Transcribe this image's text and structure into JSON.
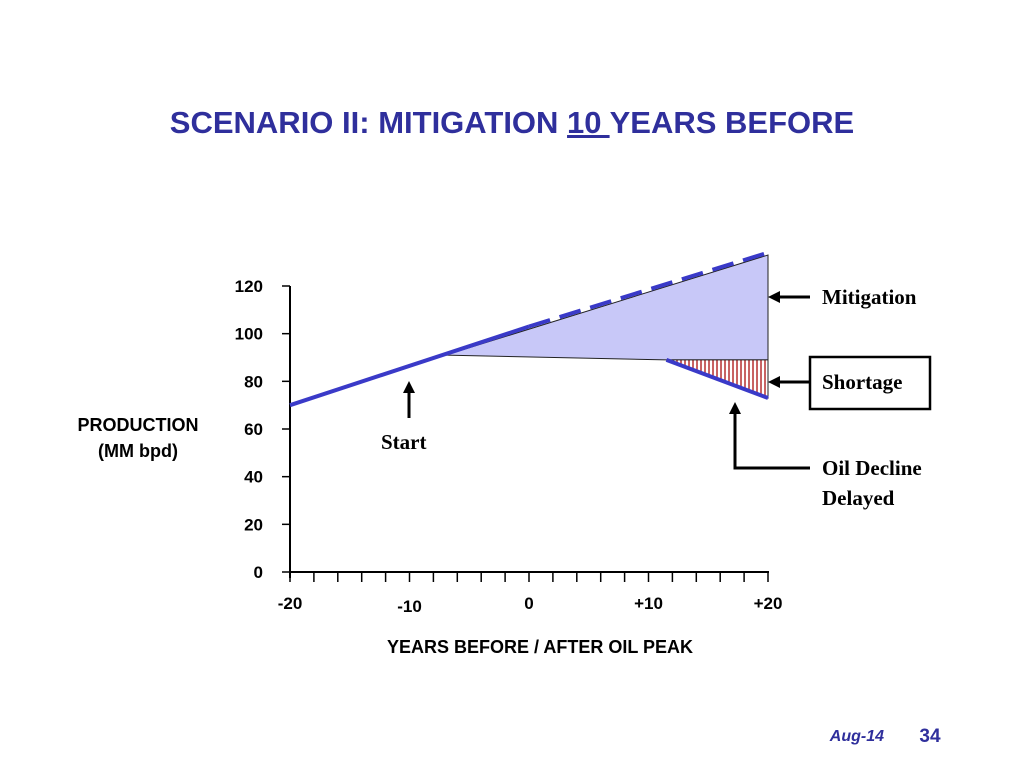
{
  "slide": {
    "title_pre": "SCENARIO II:  MITIGATION ",
    "title_underlined": "10 ",
    "title_post": "YEARS BEFORE",
    "footer_date": "Aug-14",
    "page_number": "34"
  },
  "chart_data": {
    "type": "line",
    "ylabel_line1": "PRODUCTION",
    "ylabel_line2": "(MM bpd)",
    "xlabel": "YEARS BEFORE / AFTER  OIL PEAK",
    "xlim": [
      -20,
      20
    ],
    "ylim": [
      0,
      120
    ],
    "x_ticks": [
      -20,
      -18,
      -16,
      -14,
      -12,
      -10,
      -8,
      -6,
      -4,
      -2,
      0,
      2,
      4,
      6,
      8,
      10,
      12,
      14,
      16,
      18,
      20
    ],
    "x_tick_labels": [
      {
        "x": -20,
        "label": "-20"
      },
      {
        "x": -10,
        "label": "-10"
      },
      {
        "x": 0,
        "label": "0"
      },
      {
        "x": 10,
        "label": "+10"
      },
      {
        "x": 20,
        "label": "+20"
      }
    ],
    "y_ticks": [
      0,
      20,
      40,
      60,
      80,
      100,
      120
    ],
    "y_tick_labels": [
      "0",
      "20",
      "40",
      "60",
      "80",
      "100",
      "120"
    ],
    "series": [
      {
        "style": "solid-blue",
        "x": [
          -20,
          0
        ],
        "y": [
          70,
          103
        ]
      },
      {
        "style": "dashed-blue",
        "x": [
          0,
          20
        ],
        "y": [
          103,
          134
        ]
      },
      {
        "style": "solid-blue",
        "x": [
          11.5,
          20
        ],
        "y": [
          89,
          73
        ]
      }
    ],
    "regions": [
      {
        "label": "Mitigation",
        "fill": "#c8c8f8",
        "x": [
          -7,
          20,
          20,
          11.5
        ],
        "y": [
          91,
          133,
          89,
          89
        ]
      },
      {
        "label": "Shortage",
        "fill": "#b02020",
        "hatch": "vertical",
        "x": [
          11.5,
          20,
          20
        ],
        "y": [
          89,
          89,
          73
        ]
      }
    ],
    "annotations": {
      "mitigation": "Mitigation",
      "shortage": "Shortage",
      "start": "Start",
      "decline_line1": "Oil Decline",
      "decline_line2": "Delayed"
    },
    "colors": {
      "line": "#3a3ac8",
      "mitigation_fill": "#c8c8f8",
      "shortage_hatch": "#b02020"
    }
  }
}
